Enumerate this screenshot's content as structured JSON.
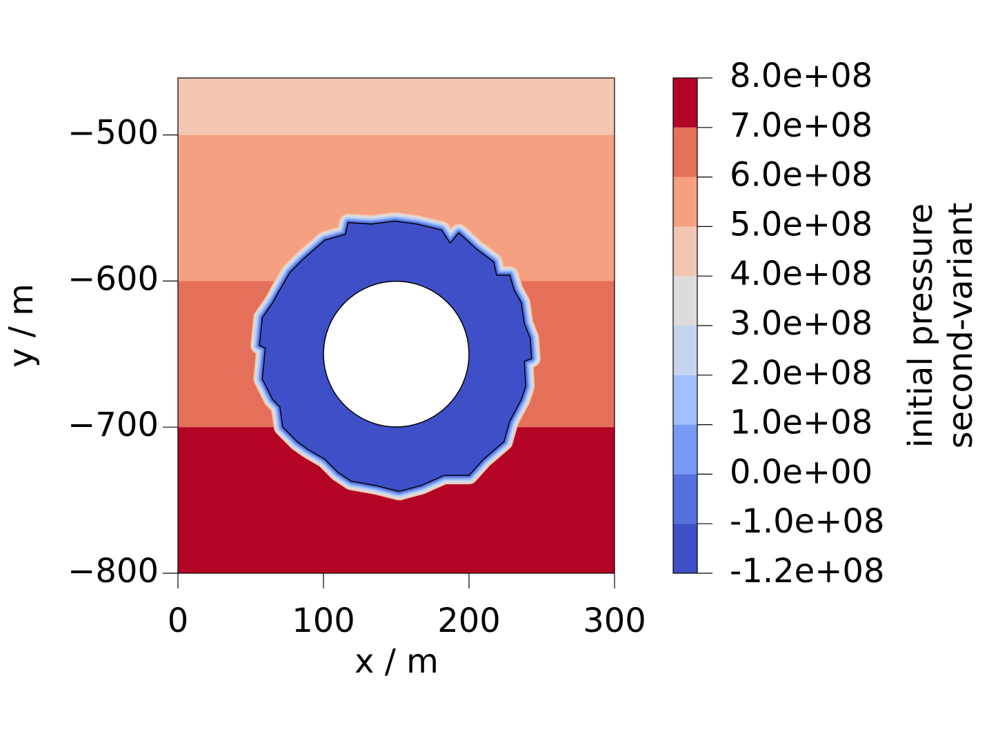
{
  "chart_data": {
    "type": "contour",
    "xlabel": "x / m",
    "ylabel": "y / m",
    "colorbar_label": [
      "initial pressure",
      "second-variant"
    ],
    "xlim": [
      0,
      300
    ],
    "ylim": [
      -800,
      -461
    ],
    "xticks": [
      0,
      100,
      200,
      300
    ],
    "yticks": [
      {
        "value": -800,
        "label": "−800"
      },
      {
        "value": -700,
        "label": "−700"
      },
      {
        "value": -600,
        "label": "−600"
      },
      {
        "value": -500,
        "label": "−500"
      }
    ],
    "levels": [
      {
        "value": -120000000,
        "label": "-1.2e+08"
      },
      {
        "value": -100000000,
        "label": "-1.0e+08"
      },
      {
        "value": 0,
        "label": "0.0e+00"
      },
      {
        "value": 100000000,
        "label": "1.0e+08"
      },
      {
        "value": 200000000,
        "label": "2.0e+08"
      },
      {
        "value": 300000000,
        "label": "3.0e+08"
      },
      {
        "value": 400000000,
        "label": "4.0e+08"
      },
      {
        "value": 500000000,
        "label": "5.0e+08"
      },
      {
        "value": 600000000,
        "label": "6.0e+08"
      },
      {
        "value": 700000000,
        "label": "7.0e+08"
      },
      {
        "value": 800000000,
        "label": "8.0e+08"
      }
    ],
    "level_colors": [
      "#3e4fc7",
      "#5470de",
      "#779af7",
      "#9fbfff",
      "#c5d5f0",
      "#dddcdb",
      "#f2c6b0",
      "#f5a081",
      "#e5705a",
      "#b40426"
    ],
    "layers": [
      {
        "ymin": -500,
        "ymax": -461,
        "color": "#f2c6b0"
      },
      {
        "ymin": -600,
        "ymax": -500,
        "color": "#f5a081"
      },
      {
        "ymin": -700,
        "ymax": -600,
        "color": "#e5705a"
      },
      {
        "ymin": -800,
        "ymax": -700,
        "color": "#b40426"
      }
    ],
    "ring": {
      "color": "#3e4fc7",
      "halo_colors": [
        "#f2c6b0",
        "#dddcdb",
        "#c5d5f0",
        "#9fbfff",
        "#779af7",
        "#5470de"
      ],
      "x": [
        117,
        133,
        149,
        164,
        181,
        187,
        193,
        205,
        217,
        219,
        228,
        231,
        236,
        238,
        242,
        243,
        238,
        239,
        236,
        228,
        224,
        210,
        200,
        183,
        167,
        152,
        136,
        119,
        110,
        101,
        89,
        82,
        72,
        70,
        65,
        58,
        60,
        56,
        58,
        65,
        70,
        77,
        86,
        101,
        108,
        115
      ],
      "y": [
        -560,
        -561,
        -559,
        -561,
        -565,
        -574,
        -567,
        -578,
        -587,
        -596,
        -596,
        -606,
        -615,
        -629,
        -639,
        -653,
        -655,
        -672,
        -681,
        -696,
        -710,
        -722,
        -733,
        -733,
        -740,
        -744,
        -740,
        -737,
        -731,
        -722,
        -715,
        -710,
        -700,
        -686,
        -681,
        -667,
        -646,
        -644,
        -625,
        -615,
        -606,
        -594,
        -585,
        -572,
        -570,
        -568
      ]
    },
    "hole": {
      "cx": 150,
      "cy": -650,
      "r": 50
    }
  }
}
